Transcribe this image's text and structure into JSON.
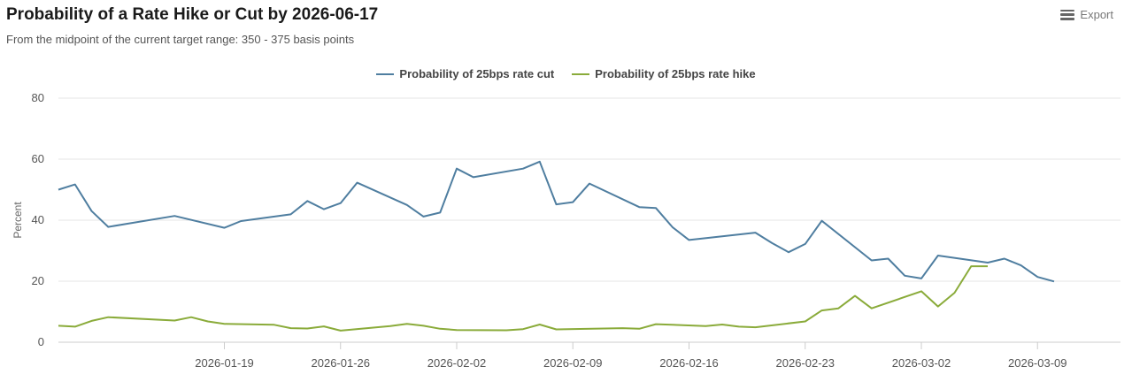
{
  "header": {
    "title": "Probability of a Rate Hike or Cut by 2026-06-17",
    "subtitle": "From the midpoint of the current target range: 350 - 375 basis points",
    "export_label": "Export"
  },
  "colors": {
    "cut": "#4f7ea0",
    "hike": "#8aab3a",
    "grid": "#e6e6e6",
    "axis": "#cccccc"
  },
  "chart_data": {
    "type": "line",
    "title": "Probability of a Rate Hike or Cut by 2026-06-17",
    "subtitle": "From the midpoint of the current target range: 350 - 375 basis points",
    "xlabel": "",
    "ylabel": "Percent",
    "ylim": [
      0,
      80
    ],
    "yticks": [
      0,
      20,
      40,
      60,
      80
    ],
    "xlim": [
      "2026-01-09",
      "2026-03-14"
    ],
    "xticks": [
      "2026-01-19",
      "2026-01-26",
      "2026-02-02",
      "2026-02-09",
      "2026-02-16",
      "2026-02-23",
      "2026-03-02",
      "2026-03-09"
    ],
    "grid": true,
    "legend": "top-center",
    "series": [
      {
        "name": "Probability of 25bps rate cut",
        "color": "#4f7ea0",
        "points": [
          [
            "2026-01-09",
            50.0
          ],
          [
            "2026-01-10",
            51.7
          ],
          [
            "2026-01-11",
            43.0
          ],
          [
            "2026-01-12",
            37.8
          ],
          [
            "2026-01-16",
            41.4
          ],
          [
            "2026-01-19",
            37.5
          ],
          [
            "2026-01-20",
            39.7
          ],
          [
            "2026-01-23",
            41.9
          ],
          [
            "2026-01-24",
            46.3
          ],
          [
            "2026-01-25",
            43.6
          ],
          [
            "2026-01-26",
            45.6
          ],
          [
            "2026-01-27",
            52.3
          ],
          [
            "2026-01-30",
            45.0
          ],
          [
            "2026-01-31",
            41.2
          ],
          [
            "2026-02-01",
            42.5
          ],
          [
            "2026-02-02",
            56.9
          ],
          [
            "2026-02-03",
            54.1
          ],
          [
            "2026-02-06",
            56.9
          ],
          [
            "2026-02-07",
            59.2
          ],
          [
            "2026-02-08",
            45.2
          ],
          [
            "2026-02-09",
            45.9
          ],
          [
            "2026-02-10",
            52.0
          ],
          [
            "2026-02-13",
            44.3
          ],
          [
            "2026-02-14",
            44.0
          ],
          [
            "2026-02-15",
            37.7
          ],
          [
            "2026-02-16",
            33.5
          ],
          [
            "2026-02-20",
            35.9
          ],
          [
            "2026-02-21",
            32.5
          ],
          [
            "2026-02-22",
            29.5
          ],
          [
            "2026-02-23",
            32.2
          ],
          [
            "2026-02-24",
            39.8
          ],
          [
            "2026-02-27",
            26.8
          ],
          [
            "2026-02-28",
            27.4
          ],
          [
            "2026-03-01",
            21.8
          ],
          [
            "2026-03-02",
            20.9
          ],
          [
            "2026-03-03",
            28.4
          ],
          [
            "2026-03-06",
            26.1
          ],
          [
            "2026-03-07",
            27.4
          ],
          [
            "2026-03-08",
            25.2
          ],
          [
            "2026-03-09",
            21.4
          ],
          [
            "2026-03-10",
            19.9
          ]
        ]
      },
      {
        "name": "Probability of 25bps rate hike",
        "color": "#8aab3a",
        "points": [
          [
            "2026-01-09",
            5.4
          ],
          [
            "2026-01-10",
            5.1
          ],
          [
            "2026-01-11",
            7.0
          ],
          [
            "2026-01-12",
            8.2
          ],
          [
            "2026-01-16",
            7.1
          ],
          [
            "2026-01-17",
            8.2
          ],
          [
            "2026-01-18",
            6.8
          ],
          [
            "2026-01-19",
            6.0
          ],
          [
            "2026-01-22",
            5.7
          ],
          [
            "2026-01-23",
            4.6
          ],
          [
            "2026-01-24",
            4.5
          ],
          [
            "2026-01-25",
            5.2
          ],
          [
            "2026-01-26",
            3.8
          ],
          [
            "2026-01-29",
            5.3
          ],
          [
            "2026-01-30",
            6.0
          ],
          [
            "2026-01-31",
            5.4
          ],
          [
            "2026-02-01",
            4.4
          ],
          [
            "2026-02-02",
            4.0
          ],
          [
            "2026-02-05",
            3.9
          ],
          [
            "2026-02-06",
            4.3
          ],
          [
            "2026-02-07",
            5.8
          ],
          [
            "2026-02-08",
            4.2
          ],
          [
            "2026-02-12",
            4.6
          ],
          [
            "2026-02-13",
            4.4
          ],
          [
            "2026-02-14",
            5.9
          ],
          [
            "2026-02-17",
            5.3
          ],
          [
            "2026-02-18",
            5.8
          ],
          [
            "2026-02-19",
            5.1
          ],
          [
            "2026-02-20",
            4.9
          ],
          [
            "2026-02-23",
            6.8
          ],
          [
            "2026-02-24",
            10.4
          ],
          [
            "2026-02-25",
            11.1
          ],
          [
            "2026-02-26",
            15.2
          ],
          [
            "2026-02-27",
            11.1
          ],
          [
            "2026-03-02",
            16.7
          ],
          [
            "2026-03-03",
            11.7
          ],
          [
            "2026-03-04",
            16.2
          ],
          [
            "2026-03-05",
            24.9
          ],
          [
            "2026-03-06",
            24.9
          ]
        ]
      }
    ]
  }
}
